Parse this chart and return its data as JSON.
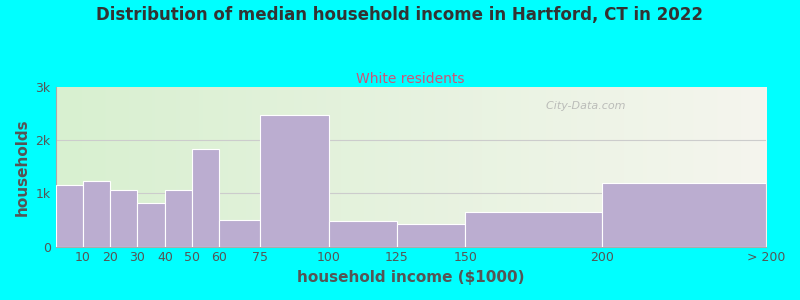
{
  "title": "Distribution of median household income in Hartford, CT in 2022",
  "subtitle": "White residents",
  "xlabel": "household income ($1000)",
  "ylabel": "households",
  "background_color": "#00FFFF",
  "bar_color": "#bbadd0",
  "bar_edge_color": "#ffffff",
  "title_color": "#333333",
  "subtitle_color": "#cc5577",
  "axis_label_color": "#555555",
  "tick_label_color": "#555555",
  "bin_left_edges": [
    0,
    10,
    20,
    30,
    40,
    50,
    60,
    75,
    100,
    125,
    150,
    200
  ],
  "bin_right_edges": [
    10,
    20,
    30,
    40,
    50,
    60,
    75,
    100,
    125,
    150,
    200,
    260
  ],
  "tick_positions": [
    10,
    20,
    30,
    40,
    50,
    60,
    75,
    100,
    125,
    150,
    200,
    260
  ],
  "tick_labels": [
    "10",
    "20",
    "30",
    "40",
    "50",
    "60",
    "75",
    "100",
    "125",
    "150",
    "200",
    "> 200"
  ],
  "values": [
    1150,
    1230,
    1060,
    820,
    1060,
    1830,
    500,
    2480,
    490,
    430,
    660,
    1200
  ],
  "ylim": [
    0,
    3000
  ],
  "yticks": [
    0,
    1000,
    2000,
    3000
  ],
  "ytick_labels": [
    "0",
    "1k",
    "2k",
    "3k"
  ],
  "watermark": "  City-Data.com",
  "figsize": [
    8.0,
    3.0
  ],
  "dpi": 100
}
